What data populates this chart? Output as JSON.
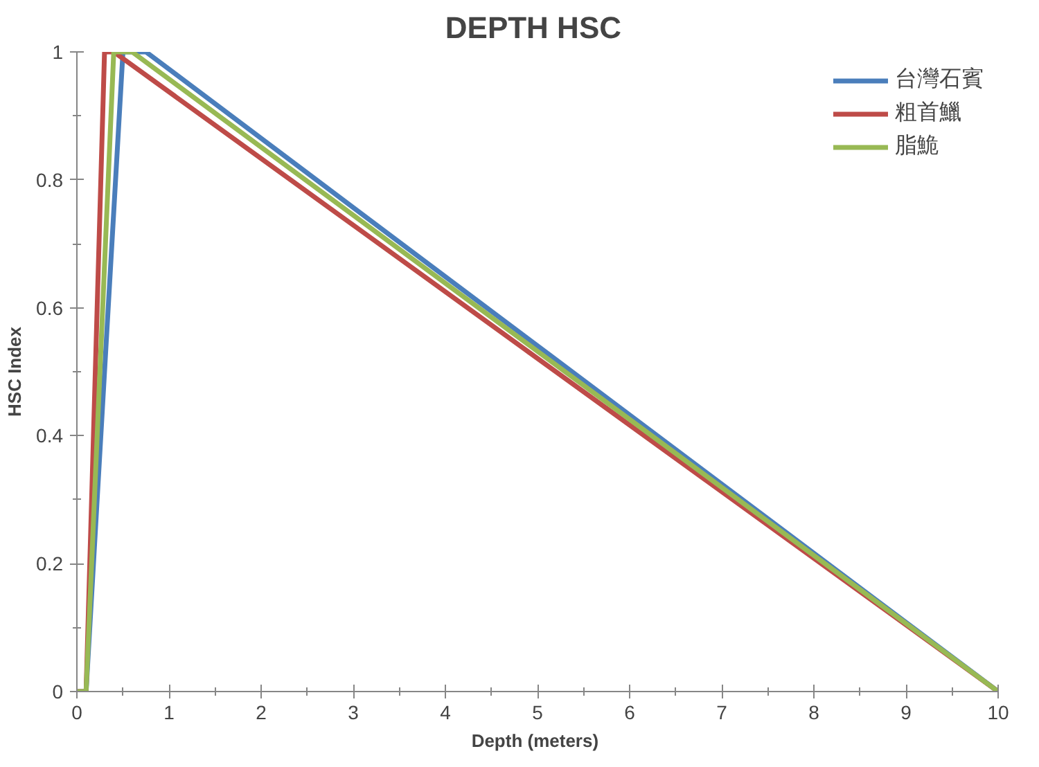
{
  "chart_data": {
    "type": "line",
    "title": "DEPTH  HSC",
    "xlabel": "Depth  (meters)",
    "ylabel": "HSC Index",
    "xlim": [
      0,
      10
    ],
    "xticks": [
      0,
      1,
      2,
      3,
      4,
      5,
      6,
      7,
      8,
      9,
      10
    ],
    "ylim": [
      0,
      1
    ],
    "yticks": [
      0,
      0.2,
      0.4,
      0.6,
      0.8,
      1
    ],
    "grid": false,
    "legend": "top right",
    "marker": "none",
    "line_style": "solid",
    "series": [
      {
        "name": "台灣石賓",
        "color": "#4a7ebb",
        "x": [
          0,
          0.1,
          0.5,
          0.75,
          10
        ],
        "values": [
          0,
          0,
          1,
          1,
          0
        ]
      },
      {
        "name": "粗首鱲",
        "color": "#be4b48",
        "x": [
          0,
          0.1,
          0.3,
          0.4,
          10
        ],
        "values": [
          0,
          0,
          1,
          1,
          0
        ]
      },
      {
        "name": "脂鮠",
        "color": "#98b954",
        "x": [
          0,
          0.1,
          0.4,
          0.6,
          10
        ],
        "values": [
          0,
          0,
          1,
          1,
          0
        ]
      }
    ]
  }
}
